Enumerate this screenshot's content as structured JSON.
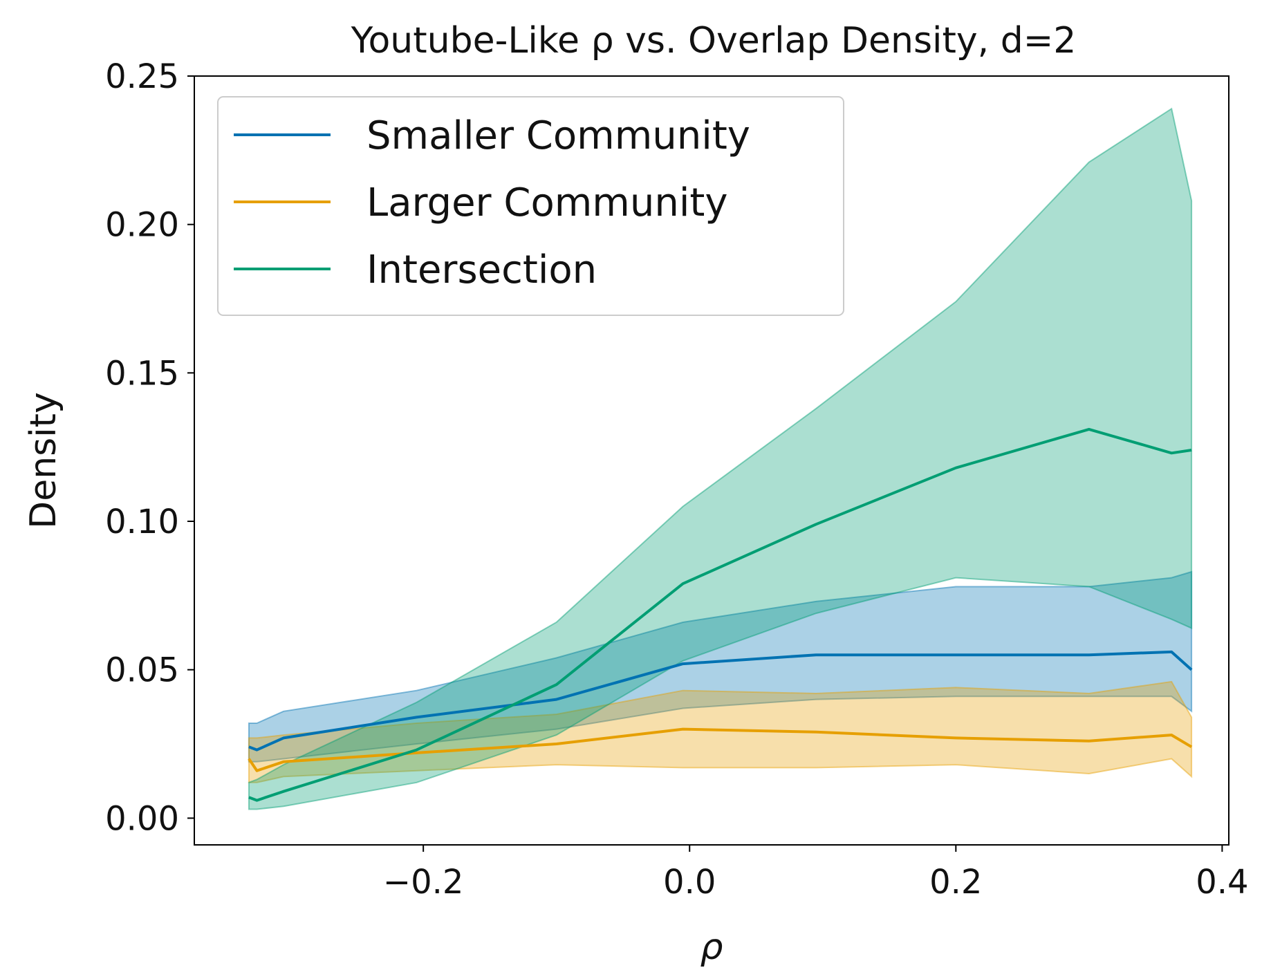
{
  "chart_data": {
    "type": "line",
    "title": "Youtube-Like ρ vs. Overlap Density, d=2",
    "xlabel": "ρ",
    "ylabel": "Density",
    "xlim": [
      -0.372,
      0.405
    ],
    "ylim": [
      -0.009,
      0.25
    ],
    "xticks": [
      -0.2,
      0.0,
      0.2,
      0.4
    ],
    "xtick_labels": [
      "−0.2",
      "0.0",
      "0.2",
      "0.4"
    ],
    "yticks": [
      0.0,
      0.05,
      0.1,
      0.15,
      0.2,
      0.25
    ],
    "ytick_labels": [
      "0.00",
      "0.05",
      "0.10",
      "0.15",
      "0.20",
      "0.25"
    ],
    "grid": false,
    "legend_position": "top-left",
    "x": [
      -0.331,
      -0.325,
      -0.305,
      -0.205,
      -0.1,
      -0.005,
      0.095,
      0.2,
      0.3,
      0.362,
      0.377
    ],
    "series": [
      {
        "name": "Smaller Community",
        "color": "#0072b2",
        "values": [
          0.024,
          0.023,
          0.027,
          0.034,
          0.04,
          0.052,
          0.055,
          0.055,
          0.055,
          0.056,
          0.05
        ],
        "lower": [
          0.019,
          0.019,
          0.02,
          0.025,
          0.03,
          0.037,
          0.04,
          0.041,
          0.041,
          0.041,
          0.036
        ],
        "upper": [
          0.032,
          0.032,
          0.036,
          0.043,
          0.054,
          0.066,
          0.073,
          0.078,
          0.078,
          0.081,
          0.083
        ]
      },
      {
        "name": "Larger Community",
        "color": "#e69f00",
        "values": [
          0.02,
          0.016,
          0.019,
          0.022,
          0.025,
          0.03,
          0.029,
          0.027,
          0.026,
          0.028,
          0.024
        ],
        "lower": [
          0.012,
          0.012,
          0.014,
          0.016,
          0.018,
          0.017,
          0.017,
          0.018,
          0.015,
          0.02,
          0.014
        ],
        "upper": [
          0.027,
          0.027,
          0.028,
          0.032,
          0.035,
          0.043,
          0.042,
          0.044,
          0.042,
          0.046,
          0.034
        ]
      },
      {
        "name": "Intersection",
        "color": "#009e73",
        "values": [
          0.007,
          0.006,
          0.009,
          0.023,
          0.045,
          0.079,
          0.099,
          0.118,
          0.131,
          0.123,
          0.124
        ],
        "lower": [
          0.003,
          0.003,
          0.004,
          0.012,
          0.028,
          0.053,
          0.069,
          0.081,
          0.078,
          0.067,
          0.064
        ],
        "upper": [
          0.012,
          0.013,
          0.018,
          0.039,
          0.066,
          0.105,
          0.138,
          0.174,
          0.221,
          0.239,
          0.208
        ]
      }
    ]
  }
}
